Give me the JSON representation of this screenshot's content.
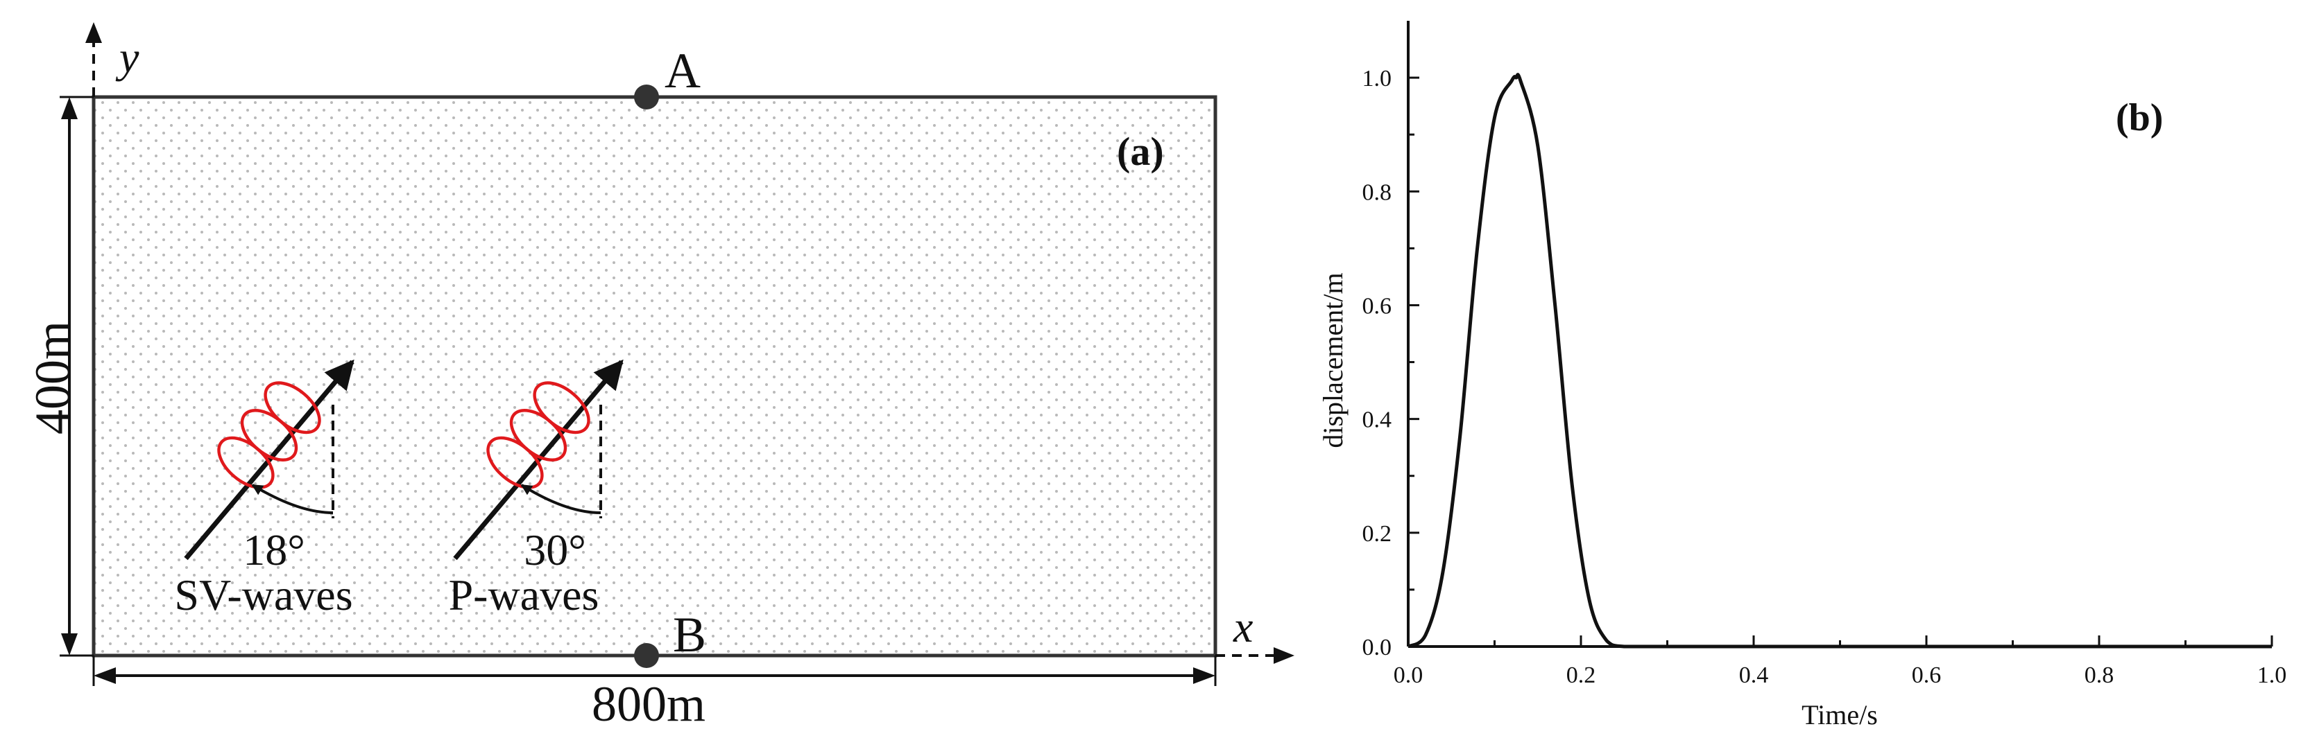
{
  "panel_a": {
    "label": "(a)",
    "axis_x": "x",
    "axis_y": "y",
    "width_label": "800m",
    "height_label": "400m",
    "point_a": "A",
    "point_b": "B",
    "wave1": {
      "angle": "18°",
      "name": "SV-waves"
    },
    "wave2": {
      "angle": "30°",
      "name": "P-waves"
    },
    "colors": {
      "wave": "#e0191c",
      "dots": "#b9b9b9",
      "lines": "#1a1a1a"
    }
  },
  "chart_data": {
    "type": "line",
    "title": "(b)",
    "xlabel": "Time/s",
    "ylabel": "displacement/m",
    "xlim": [
      0,
      1.0
    ],
    "ylim": [
      0,
      1.1
    ],
    "xticks": [
      "0.0",
      "0.2",
      "0.4",
      "0.6",
      "0.8",
      "1.0"
    ],
    "yticks": [
      "0.0",
      "0.2",
      "0.4",
      "0.6",
      "0.8",
      "1.0"
    ],
    "grid": false,
    "series": [
      {
        "x": [
          0,
          0.02,
          0.04,
          0.06,
          0.08,
          0.1,
          0.12,
          0.125,
          0.13,
          0.15,
          0.17,
          0.19,
          0.21,
          0.23,
          0.25,
          0.3,
          0.4,
          0.6,
          0.8,
          1.0
        ],
        "y": [
          0,
          0.02,
          0.13,
          0.37,
          0.7,
          0.93,
          0.995,
          1.0,
          0.995,
          0.88,
          0.6,
          0.28,
          0.08,
          0.01,
          0,
          0,
          0,
          0,
          0,
          0
        ]
      }
    ]
  }
}
